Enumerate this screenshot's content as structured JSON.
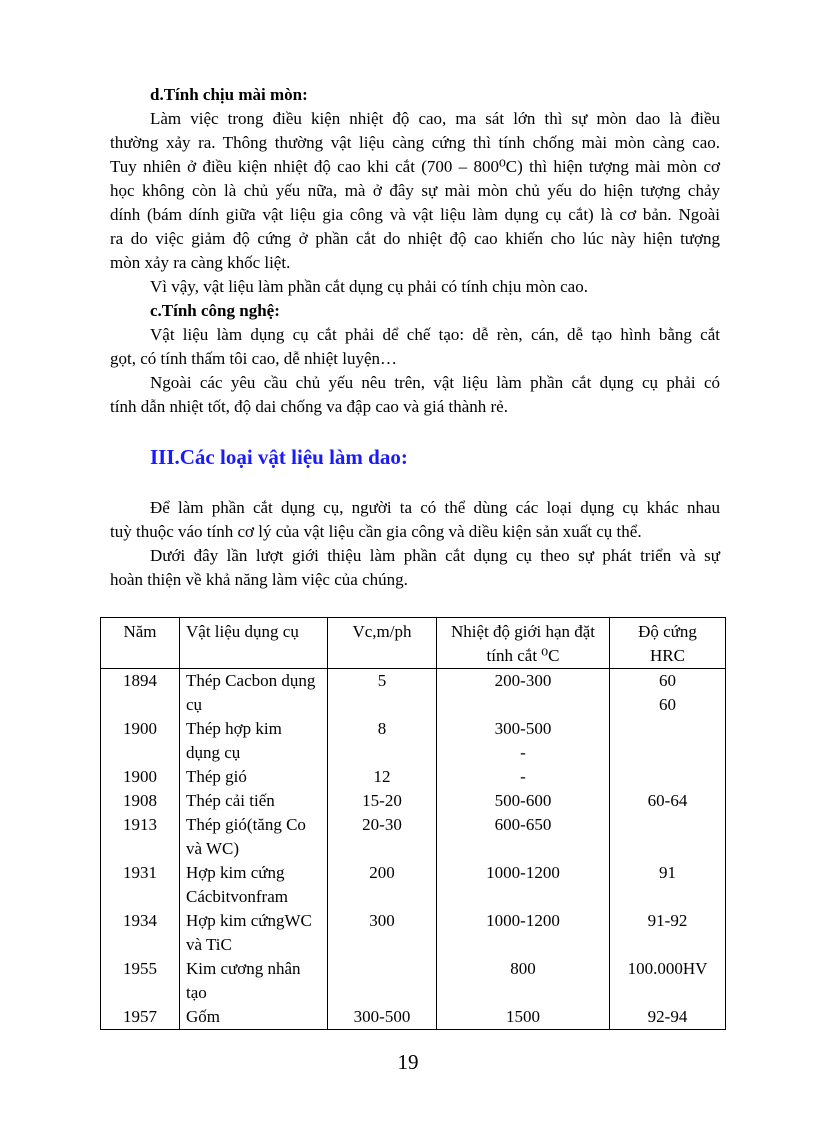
{
  "section_d": {
    "heading": "d.Tính chịu mài mòn:",
    "para1": [
      "Làm việc trong điều kiện nhiệt độ cao, ma sát  lớn thì sự mòn dao là điều",
      "thường xảy ra. Thông thường vật liệu càng cứng thì tính  chống mài mòn càng cao.",
      "Tuy nhiên ở điều kiện nhiệt độ cao khi cắt (700 – 800⁰C) thì hiện tượng mài mòn cơ",
      "học không còn là chủ yếu nữa, mà ở đây sự mài mòn chủ yếu do hiện tượng chảy",
      "dính (bám dính giữa vật liệu gia công và vật liệu làm dụng cụ cắt) là cơ bản. Ngoài",
      "ra do việc giảm độ cứng ở phần cắt do nhiệt độ cao khiến cho lúc này hiện tượng",
      "mòn xảy ra càng khốc liệt."
    ],
    "para2": [
      "Vì vậy, vật liệu làm phần cắt dụng cụ phải có tính chịu mòn cao."
    ]
  },
  "section_c": {
    "heading": "c.Tính công nghệ:",
    "para1": [
      "Vật liệu làm dụng cụ cắt phải dể chế tạo: dễ rèn, cán, dễ tạo hình bằng cắt",
      "gọt, có tính thấm tôi cao, dễ nhiệt luyện…"
    ],
    "para2": [
      "Ngoài các yêu cầu chủ yếu nêu trên, vật liệu làm phần cắt dụng cụ phải có",
      "tính dẫn nhiệt tốt, độ dai chống va đập cao và giá thành rẻ."
    ]
  },
  "section_3": {
    "heading": "III.Các loại vật liệu làm dao:",
    "heading_color": "#1a1aff",
    "para1": [
      "Để làm phần cắt dụng cụ, người ta có thể dùng các loại dụng cụ khác nhau",
      "tuỳ thuộc váo tính cơ lý của vật liệu cần gia công và diều kiện sản xuất cụ thể."
    ],
    "para2": [
      "Dưới đây lần lượt giới thiệu làm phần cắt dụng cụ theo sự phát triển và sự",
      "hoàn thiện về khả năng làm việc của chúng."
    ]
  },
  "table": {
    "headers": [
      [
        "Năm"
      ],
      [
        "Vật liệu dụng cụ"
      ],
      [
        "Vc,m/ph"
      ],
      [
        "Nhiệt độ giới hạn đặt",
        "tính cắt ⁰C"
      ],
      [
        "Độ cứng",
        "HRC"
      ]
    ],
    "lines": [
      [
        "1894",
        "Thép Cacbon dụng",
        "5",
        "200-300",
        "60"
      ],
      [
        "",
        "cụ",
        "",
        "",
        "60"
      ],
      [
        "1900",
        "Thép hợp kim",
        "8",
        "300-500",
        ""
      ],
      [
        "",
        "dụng cụ",
        "",
        "-",
        ""
      ],
      [
        "1900",
        "Thép gió",
        "12",
        "-",
        ""
      ],
      [
        "1908",
        "Thép cải tiến",
        "15-20",
        "500-600",
        "60-64"
      ],
      [
        "1913",
        "Thép gió(tăng Co",
        "20-30",
        "600-650",
        ""
      ],
      [
        "",
        "và WC)",
        "",
        "",
        ""
      ],
      [
        "1931",
        "Hợp kim cứng",
        "200",
        "1000-1200",
        "91"
      ],
      [
        "",
        "Cácbitvonfram",
        "",
        "",
        ""
      ],
      [
        "1934",
        "Hợp kim cứngWC",
        "300",
        "1000-1200",
        "91-92"
      ],
      [
        "",
        "và TiC",
        "",
        "",
        ""
      ],
      [
        "1955",
        "Kim cương nhân",
        "",
        "800",
        "100.000HV"
      ],
      [
        "",
        "tạo",
        "",
        "",
        ""
      ],
      [
        "1957",
        "Gốm",
        "300-500",
        "1500",
        "92-94"
      ]
    ]
  },
  "page_number": "19"
}
